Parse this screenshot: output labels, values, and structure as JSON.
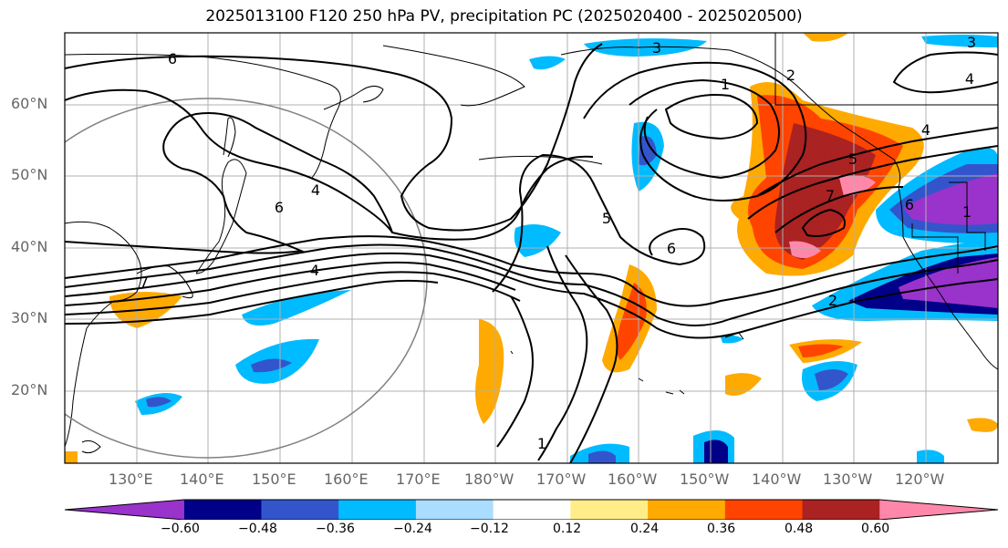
{
  "title": "2025013100 F120 250 hPa PV, precipitation PC (2025020400 - 2025020500)",
  "map": {
    "lat_labels": [
      "60°N",
      "50°N",
      "40°N",
      "30°N",
      "20°N"
    ],
    "lon_labels": [
      "130°E",
      "140°E",
      "150°E",
      "160°E",
      "170°E",
      "180°W",
      "170°W",
      "160°W",
      "150°W",
      "140°W",
      "130°W",
      "120°W"
    ],
    "contour_labels": [
      "6",
      "3",
      "1",
      "4",
      "6",
      "5",
      "6",
      "4",
      "7",
      "2",
      "1",
      "5",
      "7",
      "4",
      "2",
      "1",
      "3",
      "4",
      "6"
    ]
  },
  "colorbar": {
    "colors": [
      "#9933cc",
      "#000088",
      "#3355cc",
      "#00bbff",
      "#aaddff",
      "#ffffff",
      "#ffee88",
      "#ffaa00",
      "#ff4400",
      "#aa2222",
      "#ff88aa"
    ],
    "tick_labels": [
      "−0.60",
      "−0.48",
      "−0.36",
      "−0.24",
      "−0.12",
      "0.12",
      "0.24",
      "0.36",
      "0.48",
      "0.60"
    ]
  }
}
